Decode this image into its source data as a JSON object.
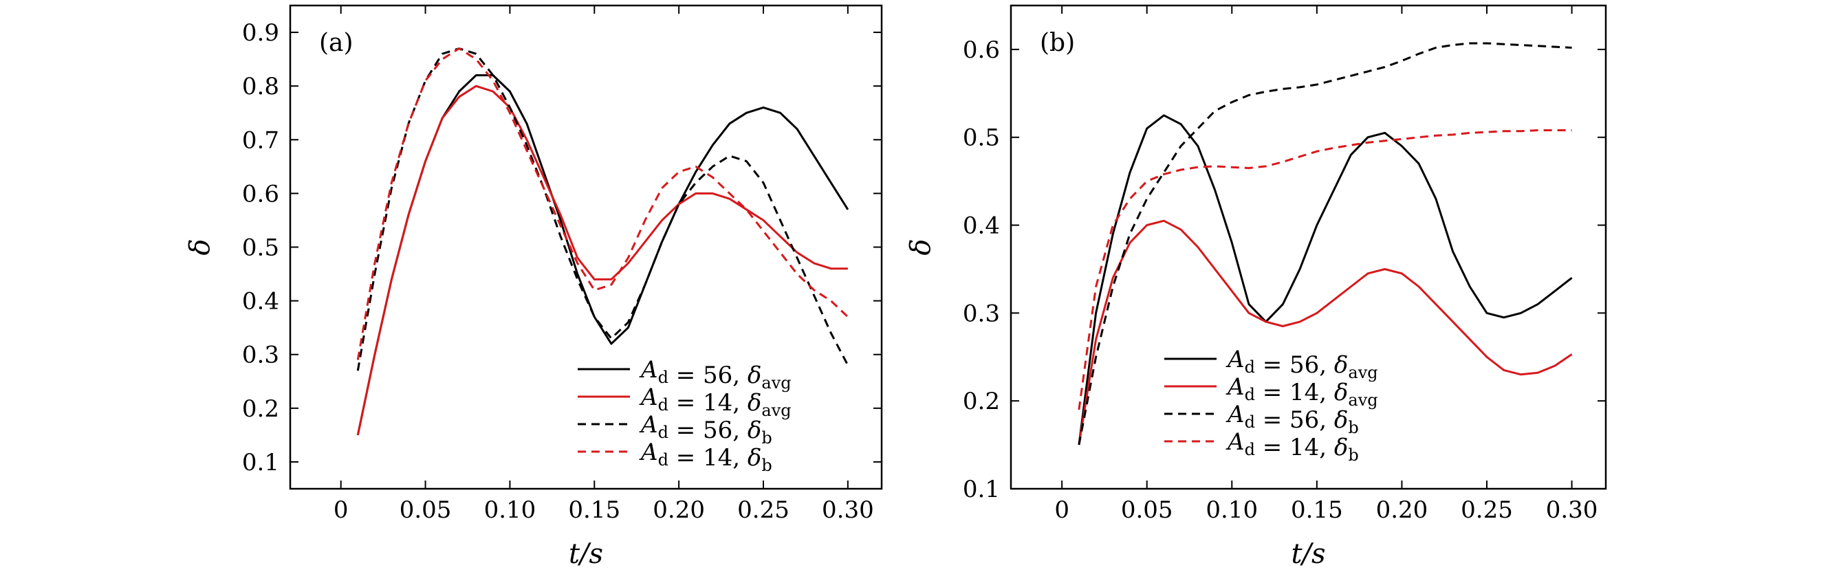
{
  "chart_data": [
    {
      "type": "line",
      "panel_label": "(a)",
      "xlabel": "t/s",
      "ylabel": "δ",
      "xlim": [
        -0.03,
        0.32
      ],
      "ylim": [
        0.05,
        0.95
      ],
      "xticks": [
        0,
        0.05,
        0.1,
        0.15,
        0.2,
        0.25,
        0.3
      ],
      "xtick_labels": [
        "0",
        "0.05",
        "0.10",
        "0.15",
        "0.20",
        "0.25",
        "0.30"
      ],
      "yticks": [
        0.1,
        0.2,
        0.3,
        0.4,
        0.5,
        0.6,
        0.7,
        0.8,
        0.9
      ],
      "ytick_labels": [
        "0.1",
        "0.2",
        "0.3",
        "0.4",
        "0.5",
        "0.6",
        "0.7",
        "0.8",
        "0.9"
      ],
      "grid": false,
      "legend_position": "bottom-right",
      "series": [
        {
          "name": "A_d = 56, δ_avg",
          "legend": {
            "a": "A",
            "a_sub": "d",
            "eq": " = 56,  ",
            "d": "δ",
            "d_sub": "avg"
          },
          "color": "#000000",
          "dash": "solid",
          "x": [
            0.01,
            0.02,
            0.03,
            0.04,
            0.05,
            0.06,
            0.07,
            0.08,
            0.09,
            0.1,
            0.11,
            0.12,
            0.13,
            0.14,
            0.15,
            0.16,
            0.17,
            0.18,
            0.19,
            0.2,
            0.21,
            0.22,
            0.23,
            0.24,
            0.25,
            0.26,
            0.27,
            0.28,
            0.29,
            0.3
          ],
          "y": [
            0.15,
            0.3,
            0.44,
            0.56,
            0.66,
            0.74,
            0.79,
            0.82,
            0.82,
            0.79,
            0.73,
            0.64,
            0.55,
            0.45,
            0.37,
            0.32,
            0.35,
            0.43,
            0.51,
            0.58,
            0.64,
            0.69,
            0.73,
            0.75,
            0.76,
            0.75,
            0.72,
            0.67,
            0.62,
            0.57
          ]
        },
        {
          "name": "A_d = 14, δ_avg",
          "legend": {
            "a": "A",
            "a_sub": "d",
            "eq": " = 14,  ",
            "d": "δ",
            "d_sub": "avg"
          },
          "color": "#d7191c",
          "dash": "solid",
          "x": [
            0.01,
            0.02,
            0.03,
            0.04,
            0.05,
            0.06,
            0.07,
            0.08,
            0.09,
            0.1,
            0.11,
            0.12,
            0.13,
            0.14,
            0.15,
            0.16,
            0.17,
            0.18,
            0.19,
            0.2,
            0.21,
            0.22,
            0.23,
            0.24,
            0.25,
            0.26,
            0.27,
            0.28,
            0.29,
            0.3
          ],
          "y": [
            0.15,
            0.3,
            0.44,
            0.56,
            0.66,
            0.74,
            0.78,
            0.8,
            0.79,
            0.76,
            0.7,
            0.63,
            0.56,
            0.48,
            0.44,
            0.44,
            0.47,
            0.51,
            0.55,
            0.58,
            0.6,
            0.6,
            0.59,
            0.57,
            0.55,
            0.52,
            0.49,
            0.47,
            0.46,
            0.46
          ]
        },
        {
          "name": "A_d = 56, δ_b",
          "legend": {
            "a": "A",
            "a_sub": "d",
            "eq": " = 56,  ",
            "d": "δ",
            "d_sub": "b"
          },
          "color": "#000000",
          "dash": "dashed",
          "x": [
            0.01,
            0.02,
            0.03,
            0.04,
            0.05,
            0.06,
            0.07,
            0.08,
            0.09,
            0.1,
            0.11,
            0.12,
            0.13,
            0.14,
            0.15,
            0.16,
            0.17,
            0.18,
            0.19,
            0.2,
            0.21,
            0.22,
            0.23,
            0.24,
            0.25,
            0.26,
            0.27,
            0.28,
            0.29,
            0.3
          ],
          "y": [
            0.27,
            0.45,
            0.61,
            0.73,
            0.81,
            0.86,
            0.87,
            0.86,
            0.82,
            0.76,
            0.69,
            0.61,
            0.52,
            0.44,
            0.37,
            0.33,
            0.36,
            0.43,
            0.51,
            0.58,
            0.62,
            0.65,
            0.67,
            0.66,
            0.62,
            0.55,
            0.48,
            0.41,
            0.34,
            0.28
          ]
        },
        {
          "name": "A_d = 14, δ_b",
          "legend": {
            "a": "A",
            "a_sub": "d",
            "eq": " = 14,  ",
            "d": "δ",
            "d_sub": "b"
          },
          "color": "#d7191c",
          "dash": "dashed",
          "x": [
            0.01,
            0.02,
            0.03,
            0.04,
            0.05,
            0.06,
            0.07,
            0.08,
            0.09,
            0.1,
            0.11,
            0.12,
            0.13,
            0.14,
            0.15,
            0.16,
            0.17,
            0.18,
            0.19,
            0.2,
            0.21,
            0.22,
            0.23,
            0.24,
            0.25,
            0.26,
            0.27,
            0.28,
            0.29,
            0.3
          ],
          "y": [
            0.29,
            0.47,
            0.62,
            0.73,
            0.81,
            0.85,
            0.87,
            0.85,
            0.81,
            0.75,
            0.68,
            0.61,
            0.54,
            0.47,
            0.42,
            0.43,
            0.48,
            0.55,
            0.61,
            0.64,
            0.65,
            0.63,
            0.6,
            0.57,
            0.53,
            0.49,
            0.45,
            0.42,
            0.4,
            0.37
          ]
        }
      ]
    },
    {
      "type": "line",
      "panel_label": "(b)",
      "xlabel": "t/s",
      "ylabel": "δ",
      "xlim": [
        -0.03,
        0.32
      ],
      "ylim": [
        0.1,
        0.65
      ],
      "xticks": [
        0,
        0.05,
        0.1,
        0.15,
        0.2,
        0.25,
        0.3
      ],
      "xtick_labels": [
        "0",
        "0.05",
        "0.10",
        "0.15",
        "0.20",
        "0.25",
        "0.30"
      ],
      "yticks": [
        0.1,
        0.2,
        0.3,
        0.4,
        0.5,
        0.6
      ],
      "ytick_labels": [
        "0.1",
        "0.2",
        "0.3",
        "0.4",
        "0.5",
        "0.6"
      ],
      "grid": false,
      "legend_position": "bottom-left",
      "series": [
        {
          "name": "A_d = 56, δ_avg",
          "legend": {
            "a": "A",
            "a_sub": "d",
            "eq": " = 56,  ",
            "d": "δ",
            "d_sub": "avg"
          },
          "color": "#000000",
          "dash": "solid",
          "x": [
            0.01,
            0.02,
            0.03,
            0.04,
            0.05,
            0.06,
            0.07,
            0.08,
            0.09,
            0.1,
            0.11,
            0.12,
            0.13,
            0.14,
            0.15,
            0.16,
            0.17,
            0.18,
            0.19,
            0.2,
            0.21,
            0.22,
            0.23,
            0.24,
            0.25,
            0.26,
            0.27,
            0.28,
            0.29,
            0.3
          ],
          "y": [
            0.15,
            0.3,
            0.39,
            0.46,
            0.51,
            0.525,
            0.515,
            0.49,
            0.44,
            0.38,
            0.31,
            0.29,
            0.31,
            0.35,
            0.4,
            0.44,
            0.48,
            0.5,
            0.505,
            0.49,
            0.47,
            0.43,
            0.37,
            0.33,
            0.3,
            0.295,
            0.3,
            0.31,
            0.325,
            0.34
          ]
        },
        {
          "name": "A_d = 14, δ_avg",
          "legend": {
            "a": "A",
            "a_sub": "d",
            "eq": " = 14,  ",
            "d": "δ",
            "d_sub": "avg"
          },
          "color": "#d7191c",
          "dash": "solid",
          "x": [
            0.01,
            0.02,
            0.03,
            0.04,
            0.05,
            0.06,
            0.07,
            0.08,
            0.09,
            0.1,
            0.11,
            0.12,
            0.13,
            0.14,
            0.15,
            0.16,
            0.17,
            0.18,
            0.19,
            0.2,
            0.21,
            0.22,
            0.23,
            0.24,
            0.25,
            0.26,
            0.27,
            0.28,
            0.29,
            0.3
          ],
          "y": [
            0.15,
            0.27,
            0.34,
            0.38,
            0.4,
            0.405,
            0.395,
            0.375,
            0.35,
            0.325,
            0.3,
            0.29,
            0.285,
            0.29,
            0.3,
            0.315,
            0.33,
            0.345,
            0.35,
            0.345,
            0.33,
            0.31,
            0.29,
            0.27,
            0.25,
            0.235,
            0.23,
            0.232,
            0.24,
            0.253
          ]
        },
        {
          "name": "A_d = 56, δ_b",
          "legend": {
            "a": "A",
            "a_sub": "d",
            "eq": " = 56,  ",
            "d": "δ",
            "d_sub": "b"
          },
          "color": "#000000",
          "dash": "dashed",
          "x": [
            0.01,
            0.02,
            0.03,
            0.04,
            0.05,
            0.06,
            0.07,
            0.08,
            0.09,
            0.1,
            0.11,
            0.12,
            0.13,
            0.14,
            0.15,
            0.16,
            0.17,
            0.18,
            0.19,
            0.2,
            0.21,
            0.22,
            0.23,
            0.24,
            0.25,
            0.26,
            0.27,
            0.28,
            0.29,
            0.3
          ],
          "y": [
            0.15,
            0.25,
            0.33,
            0.39,
            0.43,
            0.46,
            0.49,
            0.51,
            0.53,
            0.54,
            0.548,
            0.552,
            0.555,
            0.557,
            0.56,
            0.565,
            0.57,
            0.575,
            0.58,
            0.587,
            0.595,
            0.602,
            0.605,
            0.607,
            0.607,
            0.606,
            0.605,
            0.604,
            0.603,
            0.602
          ]
        },
        {
          "name": "A_d = 14, δ_b",
          "legend": {
            "a": "A",
            "a_sub": "d",
            "eq": " = 14,  ",
            "d": "δ",
            "d_sub": "b"
          },
          "color": "#d7191c",
          "dash": "dashed",
          "x": [
            0.01,
            0.02,
            0.03,
            0.04,
            0.05,
            0.06,
            0.07,
            0.08,
            0.09,
            0.1,
            0.11,
            0.12,
            0.13,
            0.14,
            0.15,
            0.16,
            0.17,
            0.18,
            0.19,
            0.2,
            0.21,
            0.22,
            0.23,
            0.24,
            0.25,
            0.26,
            0.27,
            0.28,
            0.29,
            0.3
          ],
          "y": [
            0.19,
            0.33,
            0.4,
            0.43,
            0.45,
            0.458,
            0.463,
            0.466,
            0.467,
            0.466,
            0.465,
            0.467,
            0.472,
            0.478,
            0.484,
            0.488,
            0.491,
            0.494,
            0.496,
            0.498,
            0.5,
            0.502,
            0.503,
            0.505,
            0.506,
            0.507,
            0.507,
            0.508,
            0.508,
            0.508
          ]
        }
      ]
    }
  ]
}
